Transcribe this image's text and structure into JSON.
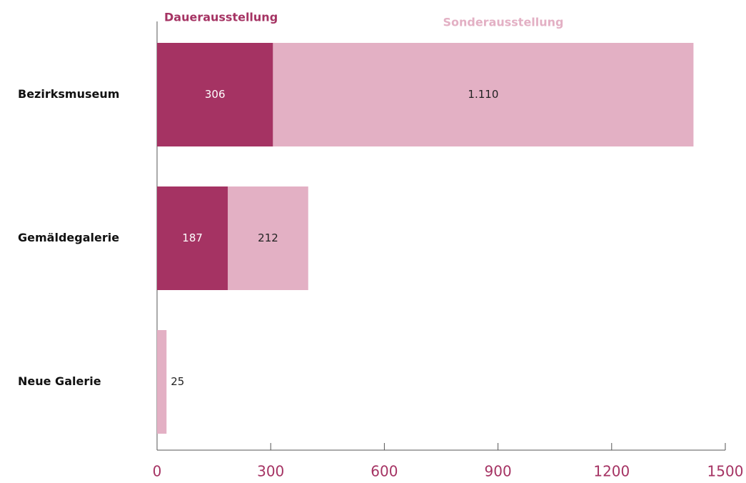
{
  "chart_data": {
    "type": "stacked-barh",
    "categories": [
      "Bezirksmuseum",
      "Gemäldegalerie",
      "Neue Galerie"
    ],
    "series": [
      {
        "name": "Dauerausstellung",
        "color": "#a53363",
        "values": [
          306,
          187,
          0
        ],
        "value_labels": [
          "306",
          "187",
          null
        ]
      },
      {
        "name": "Sonderausstellung",
        "color": "#e3b0c4",
        "values": [
          1110,
          212,
          25
        ],
        "value_labels": [
          "1.110",
          "212",
          "25"
        ]
      }
    ],
    "xlim": [
      0,
      1500
    ],
    "xticks": [
      0,
      300,
      600,
      900,
      1200,
      1500
    ]
  }
}
